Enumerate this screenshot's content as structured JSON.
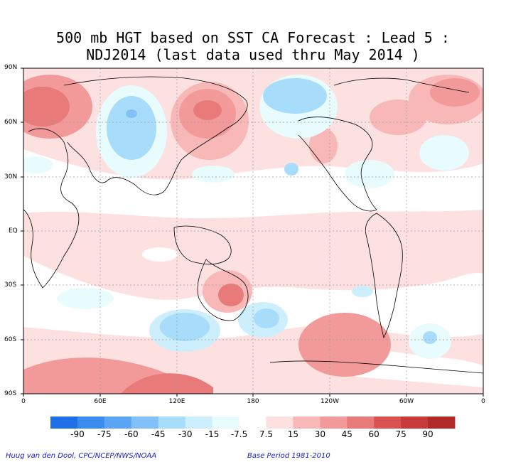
{
  "title_line1": "500 mb HGT based on SST CA Forecast : Lead 5 :",
  "title_line2": "NDJ2014 (last data used thru May 2014 )",
  "lat_labels": [
    "90N",
    "60N",
    "30N",
    "EQ",
    "30S",
    "60S",
    "90S"
  ],
  "lon_labels": [
    "0",
    "60E",
    "120E",
    "180",
    "120W",
    "60W",
    "0"
  ],
  "colorbar": {
    "labels": [
      "-90",
      "-75",
      "-60",
      "-45",
      "-30",
      "-15",
      "-7.5",
      "7.5",
      "15",
      "30",
      "45",
      "60",
      "75",
      "90"
    ],
    "colors": [
      "#1e6fe8",
      "#3a8cf0",
      "#5aa6f5",
      "#82c0fa",
      "#a8dcfb",
      "#cdeffd",
      "#e8fbfd",
      "#ffffff",
      "#fde0e0",
      "#f8b8b8",
      "#f29a9a",
      "#e87a7a",
      "#d85252",
      "#c83a3a",
      "#b02a2a"
    ]
  },
  "credit": "Huug van den Dool, CPC/NCEP/NWS/NOAA",
  "base_period": "Base Period 1981-2010"
}
